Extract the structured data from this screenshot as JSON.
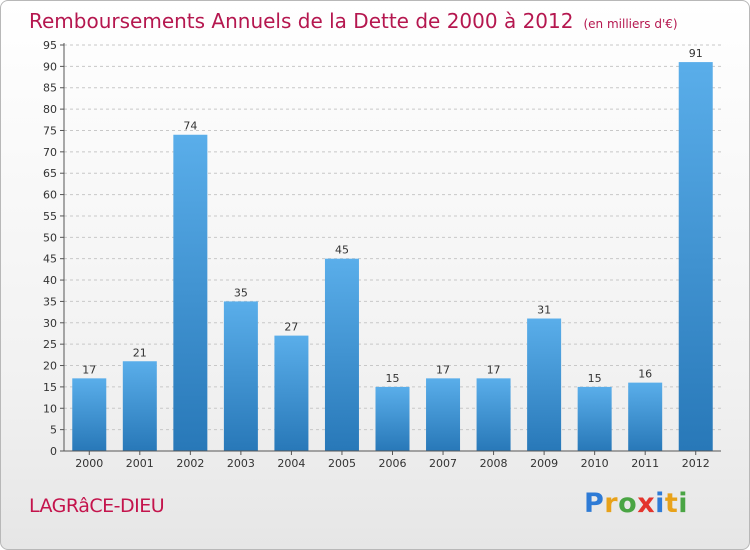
{
  "title": "Remboursements Annuels de la Dette de 2000 à 2012",
  "unit_label": "(en milliers d'€)",
  "place_name": "LAGRâCE-DIEU",
  "logo": {
    "text": "Proxiti",
    "letters": [
      {
        "char": "P",
        "color": "#2e7bd6"
      },
      {
        "char": "r",
        "color": "#e8a21a"
      },
      {
        "char": "o",
        "color": "#4aa544"
      },
      {
        "char": "x",
        "color": "#e3352d"
      },
      {
        "char": "i",
        "color": "#2e7bd6"
      },
      {
        "char": "t",
        "color": "#e8a21a"
      },
      {
        "char": "i",
        "color": "#4aa544"
      }
    ]
  },
  "colors": {
    "bar_top": "#5aaeea",
    "bar_bottom": "#2878b8",
    "grid": "#c8c8c8",
    "axis": "#555555",
    "text": "#333333"
  },
  "chart_data": {
    "type": "bar",
    "title": "Remboursements Annuels de la Dette de 2000 à 2012",
    "categories": [
      "2000",
      "2001",
      "2002",
      "2003",
      "2004",
      "2005",
      "2006",
      "2007",
      "2008",
      "2009",
      "2010",
      "2011",
      "2012"
    ],
    "values": [
      17,
      21,
      74,
      35,
      27,
      45,
      15,
      17,
      17,
      31,
      15,
      16,
      91
    ],
    "data_labels": [
      "17",
      "21",
      "74",
      "35",
      "27",
      "45",
      "15",
      "17",
      "17",
      "31",
      "15",
      "16",
      "91"
    ],
    "y_ticks": [
      "0",
      "5",
      "10",
      "15",
      "20",
      "25",
      "30",
      "35",
      "40",
      "45",
      "50",
      "55",
      "60",
      "65",
      "70",
      "75",
      "80",
      "85",
      "90",
      "95"
    ],
    "ylim": [
      0,
      95
    ],
    "grid": true,
    "grid_style": "dashed",
    "legend": false
  }
}
